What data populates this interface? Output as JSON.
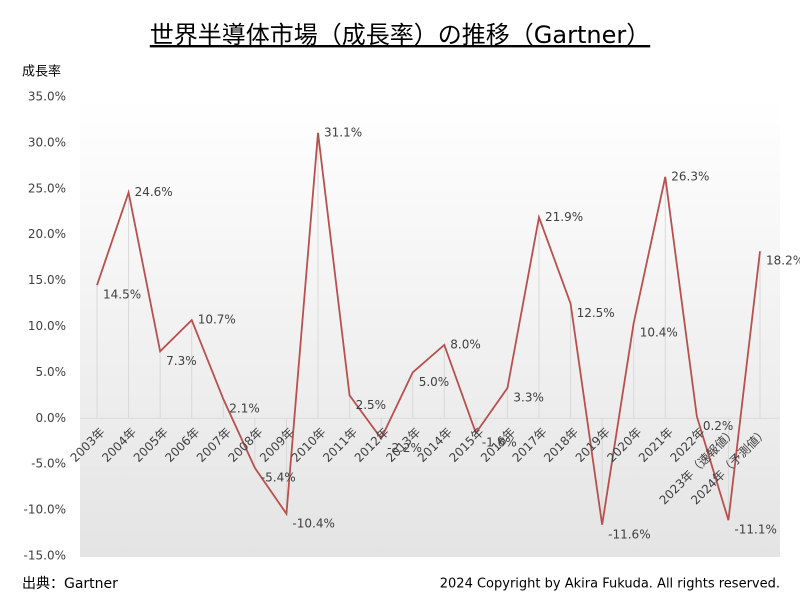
{
  "chart_data": {
    "type": "line",
    "title": "世界半導体市場（成長率）の推移（Gartner）",
    "y_label": "成長率",
    "source": "出典：Gartner",
    "copyright": "2024 Copyright by Akira Fukuda. All rights reserved.",
    "categories": [
      "2003年",
      "2004年",
      "2005年",
      "2006年",
      "2007年",
      "2008年",
      "2009年",
      "2010年",
      "2011年",
      "2012年",
      "2013年",
      "2014年",
      "2015年",
      "2016年",
      "2017年",
      "2018年",
      "2019年",
      "2020年",
      "2021年",
      "2022年",
      "2023年（速報値）",
      "2024年（予測値）"
    ],
    "series": [
      {
        "name": "成長率",
        "color": "#b9504e",
        "values": [
          14.5,
          24.6,
          7.3,
          10.7,
          2.1,
          -5.4,
          -10.4,
          31.1,
          2.5,
          -2.2,
          5.0,
          8.0,
          -1.6,
          3.3,
          21.9,
          12.5,
          -11.6,
          10.4,
          26.3,
          0.2,
          -11.1,
          18.2
        ],
        "value_labels": [
          "14.5%",
          "24.6%",
          "7.3%",
          "10.7%",
          "2.1%",
          "-5.4%",
          "-10.4%",
          "31.1%",
          "2.5%",
          "-2.2%",
          "5.0%",
          "8.0%",
          "-1.6%",
          "3.3%",
          "21.9%",
          "12.5%",
          "-11.6%",
          "10.4%",
          "26.3%",
          "0.2%",
          "-11.1%",
          "18.2%"
        ]
      }
    ],
    "ylim": [
      -15,
      35
    ],
    "yticks": [
      {
        "value": -15,
        "label": "-15.0%"
      },
      {
        "value": -10,
        "label": "-10.0%"
      },
      {
        "value": -5,
        "label": "-5.0%"
      },
      {
        "value": 0,
        "label": "0.0%"
      },
      {
        "value": 5,
        "label": "5.0%"
      },
      {
        "value": 10,
        "label": "10.0%"
      },
      {
        "value": 15,
        "label": "15.0%"
      },
      {
        "value": 20,
        "label": "20.0%"
      },
      {
        "value": 25,
        "label": "25.0%"
      },
      {
        "value": 30,
        "label": "30.0%"
      },
      {
        "value": 35,
        "label": "35.0%"
      }
    ],
    "drop_lines": true
  }
}
